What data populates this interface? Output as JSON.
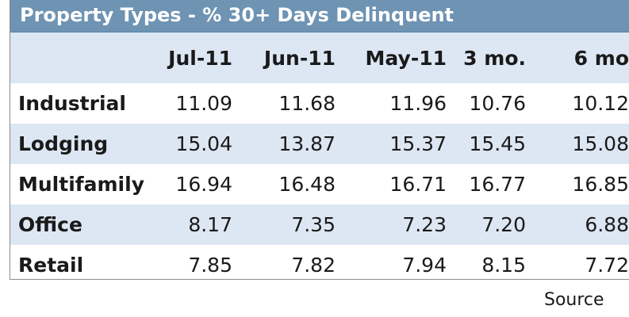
{
  "chart_data": {
    "type": "table",
    "title": "Property Types - % 30+ Days Delinquent",
    "columns": [
      "Jul-11",
      "Jun-11",
      "May-11",
      "3 mo.",
      "6 mo"
    ],
    "rows": [
      {
        "label": "Industrial",
        "values": [
          "11.09",
          "11.68",
          "11.96",
          "10.76",
          "10.12"
        ]
      },
      {
        "label": "Lodging",
        "values": [
          "15.04",
          "13.87",
          "15.37",
          "15.45",
          "15.08"
        ]
      },
      {
        "label": "Multifamily",
        "values": [
          "16.94",
          "16.48",
          "16.71",
          "16.77",
          "16.85"
        ]
      },
      {
        "label": "Office",
        "values": [
          "8.17",
          "7.35",
          "7.23",
          "7.20",
          "6.88"
        ]
      },
      {
        "label": "Retail",
        "values": [
          "7.85",
          "7.82",
          "7.94",
          "8.15",
          "7.72"
        ]
      }
    ],
    "source": "Source"
  }
}
